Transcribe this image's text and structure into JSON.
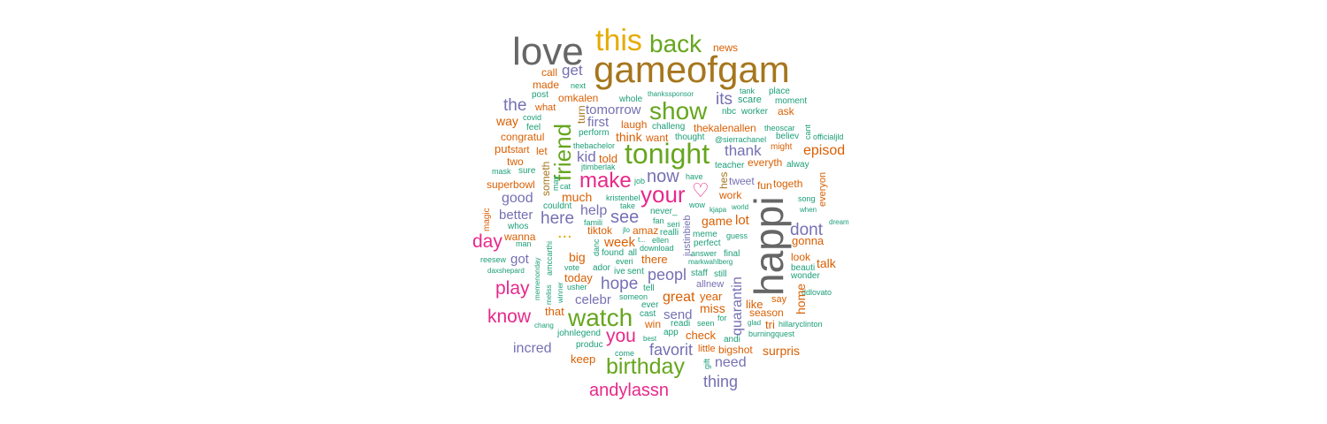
{
  "colors": {
    "gray": "#666666",
    "gold": "#E6AB02",
    "green": "#66A61E",
    "olive": "#A6761D",
    "purple": "#7570B3",
    "pink": "#E7298A",
    "orange": "#D95F02",
    "teal": "#1B9E77"
  },
  "words": {
    "love": "love",
    "this": "this",
    "back": "back",
    "news": "news",
    "gameofgam": "gameofgam",
    "get": "get",
    "call": "call",
    "made": "made",
    "next": "next",
    "post": "post",
    "omkalen": "omkalen",
    "whole": "whole",
    "thankssponsor": "thankssponsor",
    "tank": "tank",
    "place": "place",
    "moment": "moment",
    "its": "its",
    "scare": "scare",
    "what": "what",
    "the": "the",
    "tomorrow": "tomorrow",
    "show": "show",
    "nbc": "nbc",
    "worker": "worker",
    "ask": "ask",
    "way": "way",
    "covid": "covid",
    "turn": "turn",
    "first": "first",
    "laugh": "laugh",
    "feel": "feel",
    "perform": "perform",
    "challeng": "challeng",
    "thekalenallen": "thekalenallen",
    "theoscar": "theoscar",
    "congratul": "congratul",
    "friend": "friend",
    "think": "think",
    "want": "want",
    "thought": "thought",
    "sierrachanel": "@sierrachanel",
    "believ": "believ",
    "cant": "cant",
    "officialjld": "officialjld",
    "thebachelor": "thebachelor",
    "put": "put",
    "start": "start",
    "let": "let",
    "tonight": "tonight",
    "thank": "thank",
    "might": "might",
    "episod": "episod",
    "kid": "kid",
    "told": "told",
    "two": "two",
    "everyth": "everyth",
    "alway": "alway",
    "jtimberlak": "jtimberlak",
    "someth": "someth",
    "mask": "mask",
    "sure": "sure",
    "teacher": "teacher",
    "now": "now",
    "make": "make",
    "job": "job",
    "have": "have",
    "hes": "hes",
    "tweet": "tweet",
    "togeth": "togeth",
    "superbowl": "superbowl",
    "may": "may",
    "cat": "cat",
    "your": "your",
    "fun": "fun",
    "everyon": "everyon",
    "much": "much",
    "work": "work",
    "kristenbel": "kristenbel",
    "good": "good",
    "couldnt": "couldnt",
    "take": "take",
    "song": "song",
    "help": "help",
    "never": "never_",
    "justinbieb": "justinbieb",
    "wow": "wow",
    "kjapa": "kjapa",
    "world": "world",
    "when": "when",
    "magic": "magic",
    "better": "better",
    "here": "here",
    "see": "see",
    "famili": "famili",
    "fan": "fan",
    "seri": "seri",
    "game": "game",
    "lot": "lot",
    "happi": "happi",
    "dream": "dream",
    "whos": "whos",
    "tiktok": "tiktok",
    "jlo": "jlo",
    "amaz": "amaz",
    "dont": "dont",
    "day": "day",
    "wanna": "wanna",
    "ellipsis": "...",
    "realli": "realli",
    "meme": "meme",
    "guess": "guess",
    "man": "man",
    "amccarthi": "amccarthi",
    "week": "week",
    "ellen": "ellen",
    "gonna": "gonna",
    "danc": "danc",
    "download": "download",
    "perfect": "perfect",
    "t": "t...",
    "answer": "answer",
    "final": "final",
    "found": "found",
    "all": "all",
    "reesew": "reesew",
    "got": "got",
    "look": "look",
    "big": "big",
    "there": "there",
    "markwahlberg": "markwahlberg",
    "everi": "everi",
    "talk": "talk",
    "daxshepard": "daxshepard",
    "beauti": "beauti",
    "vote": "vote",
    "ador": "ador",
    "ive": "ive",
    "sent": "sent",
    "peopl": "peopl",
    "staff": "staff",
    "still": "still",
    "memenonday": "memenonday",
    "wonder": "wonder",
    "play": "play",
    "today": "today",
    "melissa": "meliss",
    "hope": "hope",
    "allnew": "allnew",
    "winner": "winner",
    "usher": "usher",
    "tell": "tell",
    "ddlovato": "ddlovato",
    "celebr": "celebr",
    "great": "great",
    "quarantin": "quarantin",
    "someon": "someon",
    "year": "year",
    "home": "home",
    "ever": "ever",
    "say": "say",
    "like": "like",
    "know": "know",
    "that": "that",
    "watch": "watch",
    "miss": "miss",
    "season": "season",
    "send": "send",
    "cast": "cast",
    "chang": "chang",
    "win": "win",
    "readi": "readi",
    "for": "for",
    "seen": "seen",
    "glad": "glad",
    "tri": "tri",
    "hillaryclinton": "hillaryclinton",
    "johnlegend": "johnlegend",
    "you": "you",
    "app": "app",
    "check": "check",
    "burningquest": "burningquest",
    "best": "best",
    "andi": "andi",
    "incred": "incred",
    "produc": "produc",
    "favorit": "favorit",
    "little": "little",
    "bigshot": "bigshot",
    "surpris": "surpris",
    "keep": "keep",
    "come": "come",
    "birthday": "birthday",
    "gift": "gift",
    "need": "need",
    "thing": "thing",
    "andylassn": "andylassn"
  }
}
